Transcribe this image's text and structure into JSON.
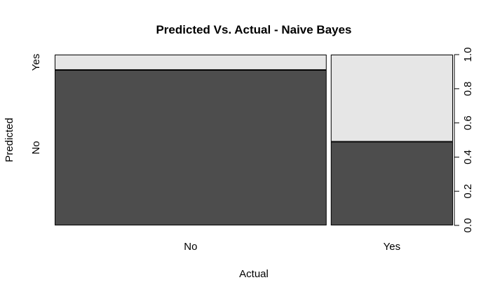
{
  "chart_data": {
    "type": "bar",
    "subtype": "spineplot",
    "title": "Predicted Vs. Actual - Naive Bayes",
    "xlabel": "Actual",
    "ylabel": "Predicted",
    "categories": [
      "No",
      "Yes"
    ],
    "category_widths": [
      0.69,
      0.31
    ],
    "series": [
      {
        "name": "No",
        "values": [
          0.91,
          0.49
        ],
        "color": "#4d4d4d"
      },
      {
        "name": "Yes",
        "values": [
          0.09,
          0.51
        ],
        "color": "#e6e6e6"
      }
    ],
    "right_axis": {
      "ylim": [
        0,
        1
      ],
      "ticks": [
        "0.0",
        "0.2",
        "0.4",
        "0.6",
        "0.8",
        "1.0"
      ]
    },
    "left_axis_labels": [
      "No",
      "Yes"
    ],
    "grid": false,
    "legend": "none"
  }
}
